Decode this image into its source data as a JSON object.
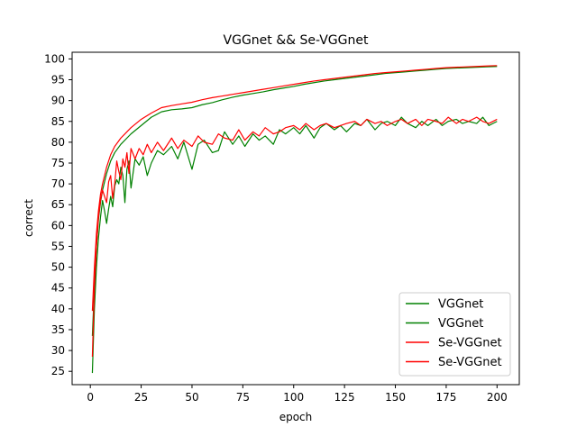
{
  "chart_data": {
    "type": "line",
    "title": "VGGnet && Se-VGGnet",
    "xlabel": "epoch",
    "ylabel": "correct",
    "xlim": [
      -8.95,
      210.95
    ],
    "ylim": [
      21.8,
      101.6
    ],
    "xticks": [
      0,
      25,
      50,
      75,
      100,
      125,
      150,
      175,
      200
    ],
    "yticks": [
      25,
      30,
      35,
      40,
      45,
      50,
      55,
      60,
      65,
      70,
      75,
      80,
      85,
      90,
      95,
      100
    ],
    "grid": false,
    "legend_position": "lower right",
    "series": [
      {
        "name": "VGGnet",
        "color": "#008000",
        "x": [
          1,
          2,
          3,
          4,
          5,
          6,
          8,
          10,
          12,
          15,
          18,
          20,
          25,
          30,
          35,
          40,
          45,
          50,
          55,
          60,
          65,
          70,
          75,
          80,
          85,
          90,
          95,
          100,
          105,
          110,
          115,
          120,
          125,
          130,
          135,
          140,
          145,
          150,
          155,
          160,
          165,
          170,
          175,
          180,
          185,
          190,
          195,
          200
        ],
        "values": [
          33.5,
          45.0,
          55.0,
          61.5,
          65.5,
          68.5,
          72.5,
          75.5,
          77.5,
          79.5,
          81.0,
          82.0,
          84.0,
          86.0,
          87.3,
          87.8,
          88.0,
          88.3,
          89.0,
          89.5,
          90.2,
          90.8,
          91.3,
          91.7,
          92.1,
          92.6,
          93.0,
          93.4,
          93.9,
          94.3,
          94.7,
          95.0,
          95.3,
          95.6,
          95.9,
          96.2,
          96.5,
          96.7,
          96.9,
          97.1,
          97.3,
          97.5,
          97.7,
          97.8,
          97.9,
          98.0,
          98.1,
          98.2
        ]
      },
      {
        "name": "VGGnet",
        "color": "#008000",
        "x": [
          1,
          2,
          3,
          4,
          5,
          6,
          7,
          8,
          9,
          10,
          11,
          12,
          13,
          14,
          15,
          16,
          17,
          18,
          19,
          20,
          22,
          24,
          26,
          28,
          30,
          33,
          36,
          40,
          43,
          46,
          50,
          53,
          56,
          60,
          63,
          66,
          70,
          73,
          76,
          80,
          83,
          86,
          90,
          93,
          96,
          100,
          103,
          106,
          110,
          113,
          116,
          120,
          123,
          126,
          130,
          133,
          136,
          140,
          143,
          146,
          150,
          153,
          156,
          160,
          163,
          166,
          170,
          173,
          176,
          180,
          183,
          186,
          190,
          193,
          196,
          200
        ],
        "values": [
          24.6,
          40.0,
          50.0,
          57.0,
          62.0,
          66.0,
          63.5,
          60.5,
          64.0,
          67.0,
          64.5,
          69.5,
          71.0,
          70.0,
          74.0,
          72.0,
          65.5,
          73.5,
          75.5,
          69.0,
          76.0,
          74.5,
          76.5,
          72.0,
          75.0,
          78.0,
          77.0,
          79.0,
          76.0,
          80.0,
          73.5,
          79.5,
          80.5,
          77.5,
          78.0,
          82.5,
          79.5,
          81.5,
          79.0,
          82.0,
          80.5,
          81.5,
          79.5,
          83.0,
          82.0,
          83.5,
          82.0,
          84.0,
          81.0,
          83.5,
          84.5,
          83.0,
          84.0,
          82.5,
          84.5,
          84.0,
          85.5,
          83.0,
          84.5,
          85.0,
          84.0,
          86.0,
          84.5,
          83.5,
          85.0,
          84.0,
          85.5,
          84.0,
          85.0,
          85.5,
          84.5,
          85.0,
          84.5,
          86.0,
          84.0,
          85.0
        ]
      },
      {
        "name": "Se-VGGnet",
        "color": "#ff0000",
        "x": [
          1,
          2,
          3,
          4,
          5,
          6,
          8,
          10,
          12,
          15,
          18,
          20,
          25,
          30,
          35,
          40,
          45,
          50,
          55,
          60,
          65,
          70,
          75,
          80,
          85,
          90,
          95,
          100,
          105,
          110,
          115,
          120,
          125,
          130,
          135,
          140,
          145,
          150,
          155,
          160,
          165,
          170,
          175,
          180,
          185,
          190,
          195,
          200
        ],
        "values": [
          39.5,
          50.0,
          58.0,
          63.5,
          67.5,
          70.0,
          74.0,
          77.0,
          79.0,
          81.0,
          82.5,
          83.5,
          85.5,
          87.0,
          88.3,
          88.8,
          89.2,
          89.6,
          90.2,
          90.7,
          91.1,
          91.5,
          91.9,
          92.3,
          92.7,
          93.1,
          93.5,
          93.9,
          94.3,
          94.7,
          95.0,
          95.3,
          95.6,
          95.9,
          96.2,
          96.5,
          96.7,
          96.9,
          97.1,
          97.3,
          97.5,
          97.7,
          97.9,
          98.0,
          98.1,
          98.2,
          98.3,
          98.4
        ]
      },
      {
        "name": "Se-VGGnet",
        "color": "#ff0000",
        "x": [
          1,
          2,
          3,
          4,
          5,
          6,
          7,
          8,
          9,
          10,
          11,
          12,
          13,
          14,
          15,
          16,
          17,
          18,
          19,
          20,
          22,
          24,
          26,
          28,
          30,
          33,
          36,
          40,
          43,
          46,
          50,
          53,
          56,
          60,
          63,
          66,
          70,
          73,
          76,
          80,
          83,
          86,
          90,
          93,
          96,
          100,
          103,
          106,
          110,
          113,
          116,
          120,
          123,
          126,
          130,
          133,
          136,
          140,
          143,
          146,
          150,
          153,
          156,
          160,
          163,
          166,
          170,
          173,
          176,
          180,
          183,
          186,
          190,
          193,
          196,
          200
        ],
        "values": [
          28.5,
          45.0,
          55.0,
          62.0,
          66.0,
          68.5,
          67.0,
          65.5,
          70.5,
          72.0,
          66.5,
          70.0,
          75.5,
          73.0,
          71.0,
          76.0,
          74.0,
          77.5,
          72.5,
          78.5,
          76.0,
          78.5,
          77.0,
          79.5,
          77.5,
          80.0,
          78.0,
          81.0,
          78.5,
          80.5,
          79.0,
          81.5,
          80.0,
          79.5,
          82.0,
          81.0,
          80.5,
          83.0,
          80.5,
          82.5,
          81.5,
          83.5,
          82.0,
          82.5,
          83.5,
          84.0,
          83.0,
          84.5,
          83.0,
          84.0,
          84.5,
          83.5,
          84.0,
          84.5,
          85.0,
          84.0,
          85.5,
          84.5,
          85.0,
          84.0,
          85.0,
          85.5,
          84.5,
          85.5,
          84.0,
          85.5,
          85.0,
          84.5,
          86.0,
          84.5,
          85.5,
          85.0,
          86.0,
          85.0,
          84.5,
          85.5
        ]
      }
    ]
  }
}
